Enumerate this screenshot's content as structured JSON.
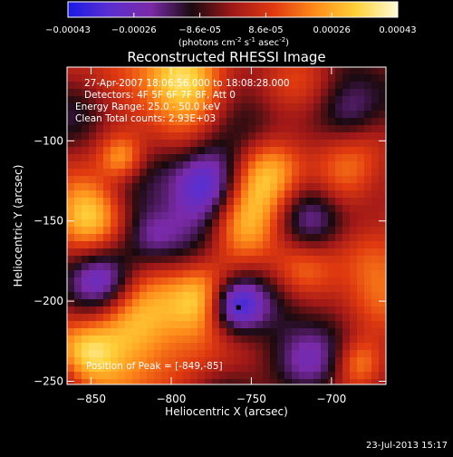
{
  "colorbar": {
    "ticks": [
      "-0.00043",
      "-0.00026",
      "-8.6e-05",
      "8.6e-05",
      "0.00026",
      "0.00043"
    ],
    "units_main": "(photons cm",
    "units_exp1": "-2",
    "units_mid": " s",
    "units_exp2": "-1",
    "units_end": " asec",
    "units_exp3": "-2",
    "units_close": ")",
    "colors": [
      "#1a1ae6",
      "#5a2fd0",
      "#7b2aa8",
      "#1a0a10",
      "#a01818",
      "#e03a10",
      "#ff8c1a",
      "#ffd23a",
      "#fffbd8"
    ]
  },
  "chart_data": {
    "type": "heatmap",
    "title": "Reconstructed RHESSI Image",
    "xlabel": "Heliocentric X (arcsec)",
    "ylabel": "Heliocentric Y (arcsec)",
    "xlim": [
      -865,
      -666
    ],
    "ylim": [
      -252,
      -54
    ],
    "xticks": [
      -850,
      -800,
      -750,
      -700
    ],
    "yticks": [
      -100,
      -150,
      -200,
      -250
    ],
    "xtick_labels": [
      "−850",
      "−800",
      "−750",
      "−700"
    ],
    "ytick_labels": [
      "−100",
      "−150",
      "−200",
      "−250"
    ],
    "value_range": [
      -0.00043,
      0.00043
    ],
    "peak": {
      "x": -849,
      "y": -85
    },
    "annotations": [
      "27-Apr-2007 18:06:56.000 to 18:08:28.000",
      "Detectors: 4F 5F 6F 7F 8F, Att 0",
      "Energy Range: 25.0 - 50.0 keV",
      "Clean    Total counts: 2.93E+03"
    ],
    "peak_label": "Position of Peak = [-849,-85]",
    "marker": {
      "x": -758,
      "y": -204
    }
  },
  "footer": {
    "timestamp": "23-Jul-2013 15:17"
  }
}
